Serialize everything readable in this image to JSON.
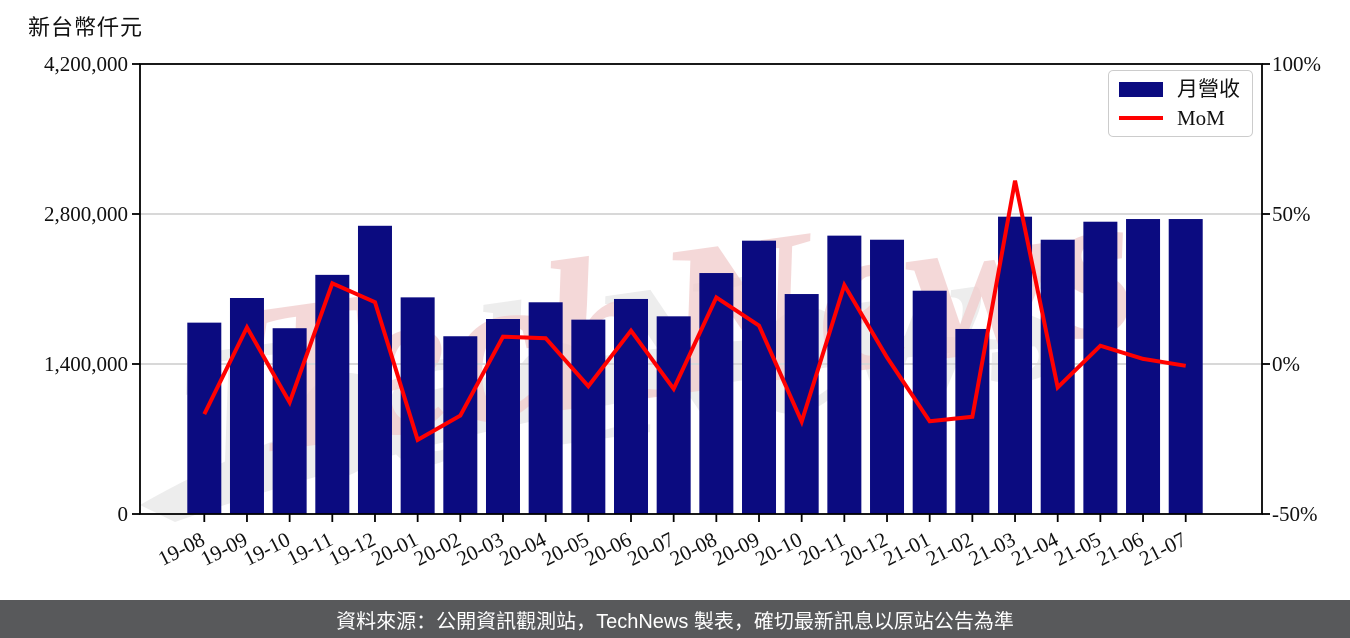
{
  "axis_title": "新台幣仟元",
  "legend": {
    "bar_label": "月營收",
    "line_label": "MoM"
  },
  "footer": {
    "text": "資料來源：公開資訊觀測站，TechNews 製表，確切最新訊息以原站公告為準"
  },
  "watermark": {
    "text": "TechNews"
  },
  "colors": {
    "bar": "#0B0B80",
    "line": "#FF0000",
    "grid": "#D8D8D8",
    "frame": "#000000",
    "footer_bg": "#58595B",
    "watermark_pink": "#F0CBCB",
    "watermark_gray": "#EDEDED"
  },
  "chart_data": {
    "type": "bar",
    "title": "",
    "categories": [
      "19-08",
      "19-09",
      "19-10",
      "19-11",
      "19-12",
      "20-01",
      "20-02",
      "20-03",
      "20-04",
      "20-05",
      "20-06",
      "20-07",
      "20-08",
      "20-09",
      "20-10",
      "20-11",
      "20-12",
      "21-01",
      "21-02",
      "21-03",
      "21-04",
      "21-05",
      "21-06",
      "21-07"
    ],
    "series": [
      {
        "name": "月營收",
        "type": "bar",
        "axis": "left",
        "color": "#0B0B80",
        "values": [
          1786000,
          2016000,
          1734000,
          2232000,
          2690000,
          2022000,
          1659000,
          1820000,
          1976000,
          1814000,
          2007000,
          1845000,
          2249000,
          2551000,
          2053000,
          2598000,
          2560000,
          2084000,
          1727000,
          2775000,
          2560000,
          2728000,
          2753000,
          2753000
        ]
      },
      {
        "name": "MoM",
        "type": "line",
        "axis": "right",
        "color": "#FF0000",
        "values": [
          -16.7,
          12.2,
          -12.8,
          26.9,
          20.6,
          -25.3,
          -17.2,
          9.1,
          8.6,
          -7.4,
          11.1,
          -8.3,
          22.2,
          12.8,
          -19.2,
          26.3,
          2.2,
          -19.1,
          -17.6,
          61.1,
          -7.8,
          6.1,
          1.7,
          -0.6
        ]
      }
    ],
    "left_axis": {
      "label": "新台幣仟元",
      "range": [
        0,
        4200000
      ],
      "ticks": [
        0,
        1400000,
        2800000,
        4200000
      ],
      "tick_labels": [
        "0",
        "1,400,000",
        "2,800,000",
        "4,200,000"
      ]
    },
    "right_axis": {
      "label": "",
      "range": [
        -50,
        100
      ],
      "ticks": [
        -50,
        0,
        50,
        100
      ],
      "tick_labels": [
        "-50%",
        "0%",
        "50%",
        "100%"
      ]
    },
    "grid": "horizontal",
    "legend_position": "top-right"
  }
}
